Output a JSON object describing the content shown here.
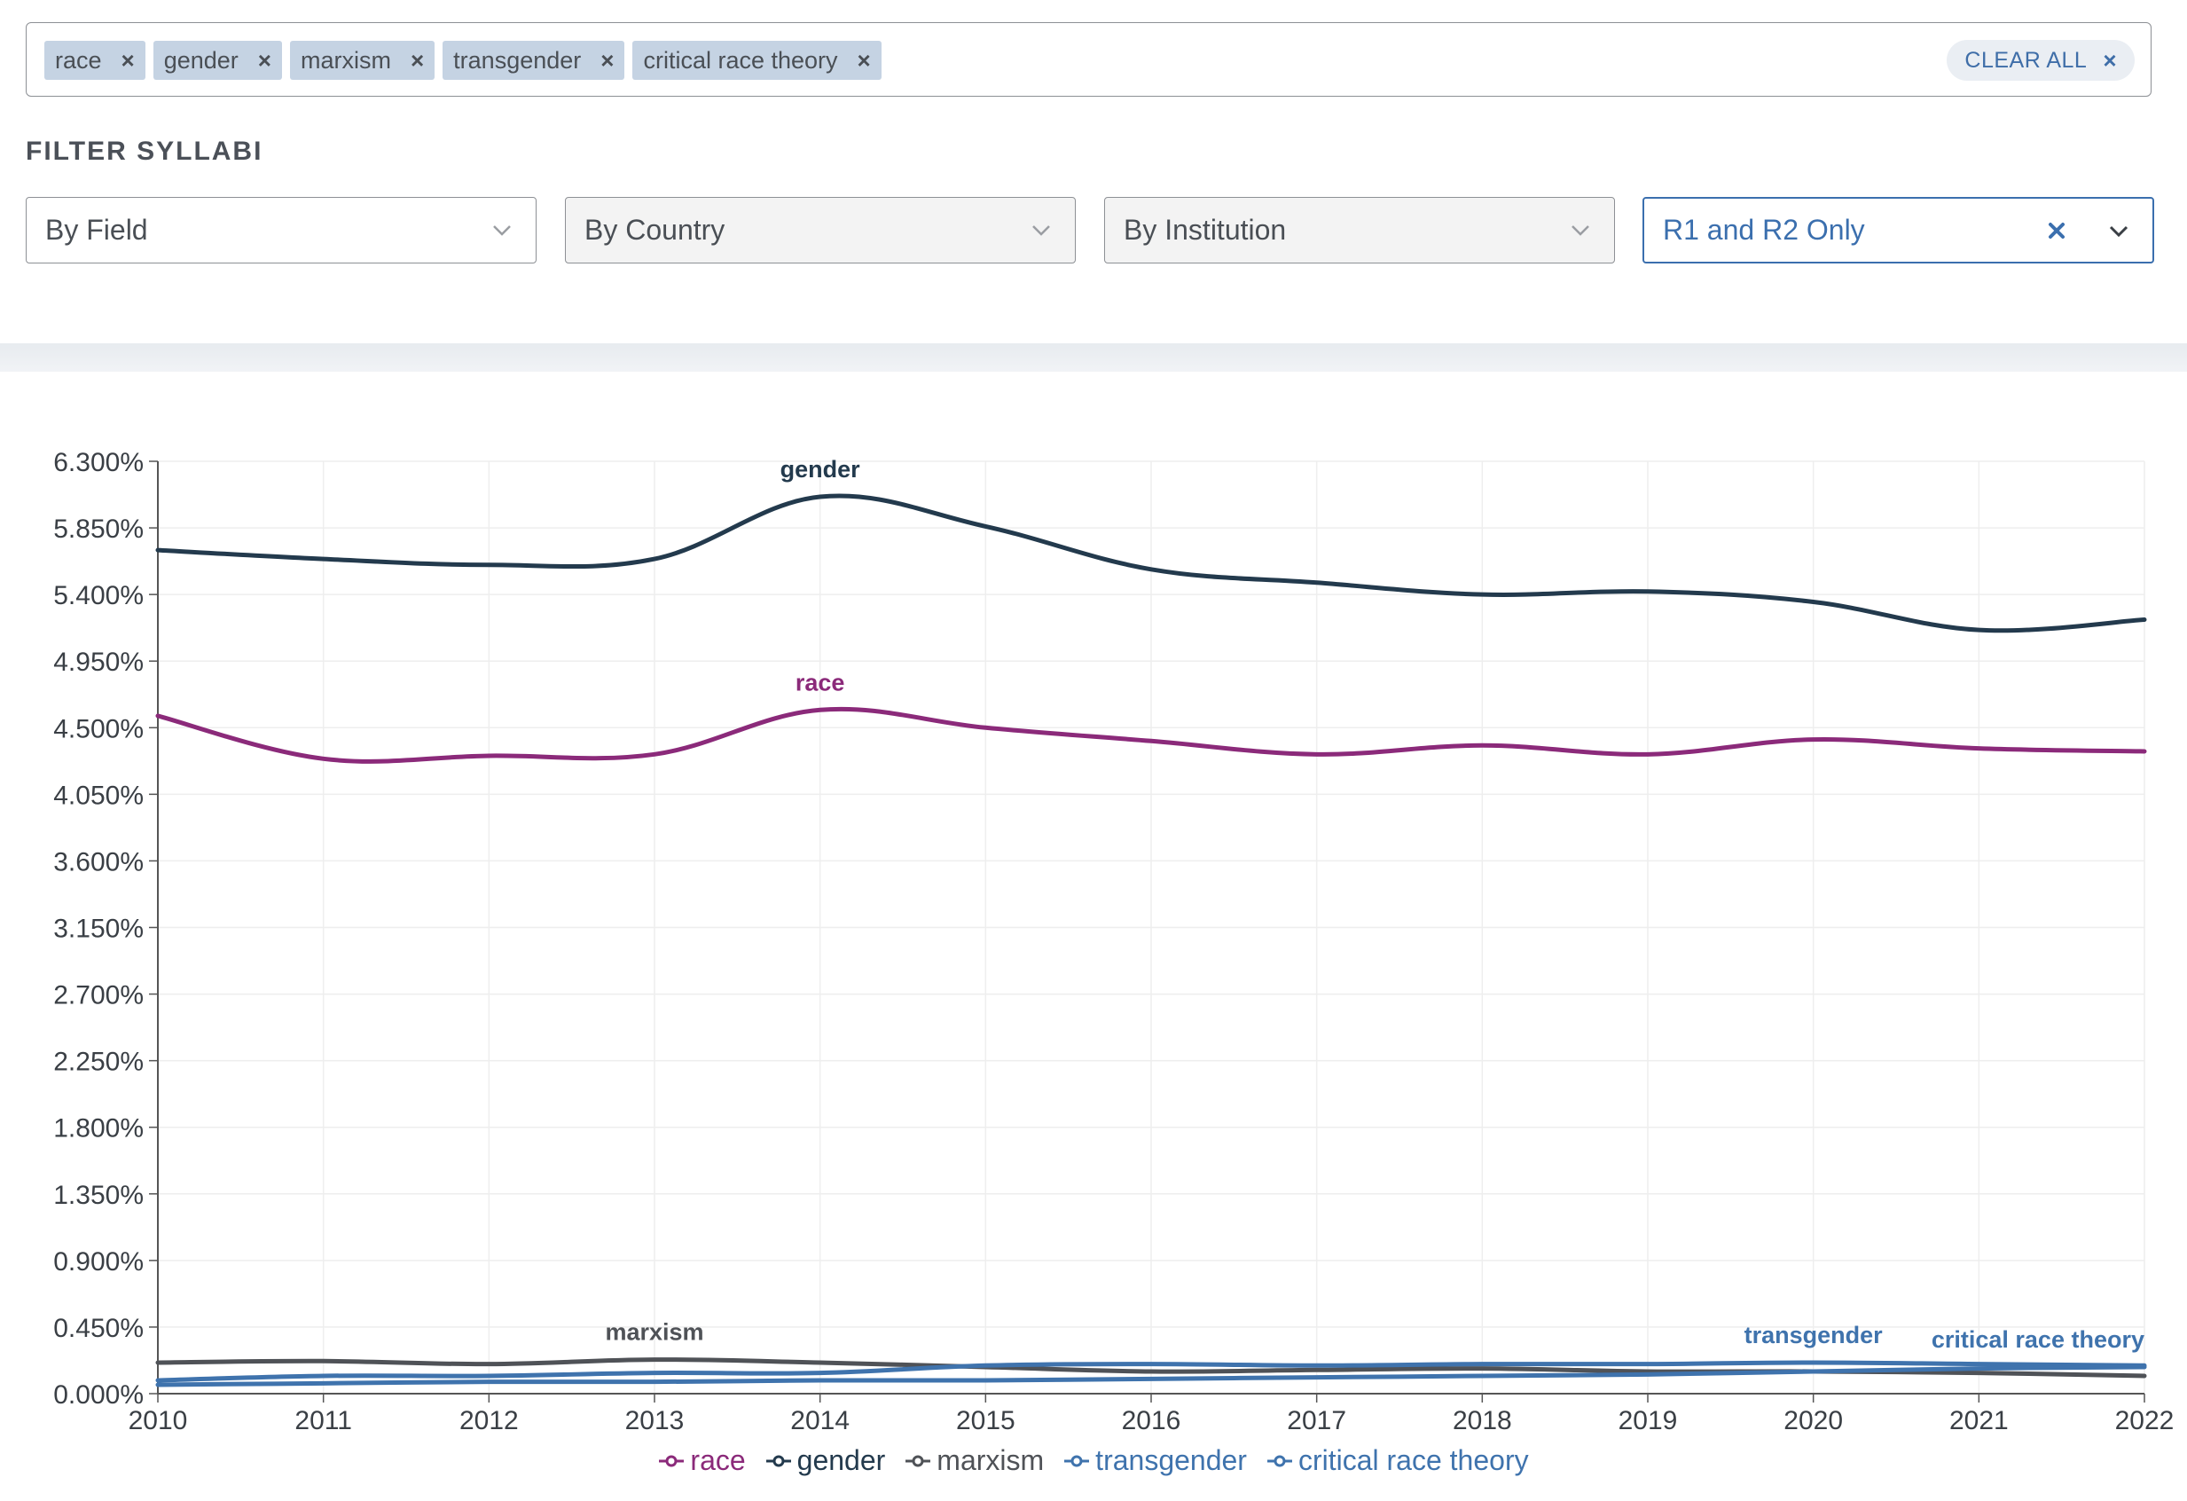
{
  "search": {
    "chips": [
      {
        "label": "race"
      },
      {
        "label": "gender"
      },
      {
        "label": "marxism"
      },
      {
        "label": "transgender"
      },
      {
        "label": "critical race theory"
      }
    ],
    "chip_remove_glyph": "×",
    "clear_all": "CLEAR ALL",
    "clear_all_glyph": "×"
  },
  "filters": {
    "title": "FILTER SYLLABI",
    "field": "By Field",
    "country": "By Country",
    "institution": "By Institution",
    "level": "R1 and R2 Only"
  },
  "colors": {
    "race": "#8b2a7a",
    "gender": "#233a4d",
    "marxism": "#4f5257",
    "transgender": "#3f73ad",
    "critical_race_theory": "#3f73ad",
    "accent": "#3b6fae"
  },
  "chart_data": {
    "type": "line",
    "x": [
      2010,
      2011,
      2012,
      2013,
      2014,
      2015,
      2016,
      2017,
      2018,
      2019,
      2020,
      2021,
      2022
    ],
    "ylim": [
      0,
      6.3
    ],
    "yticks": [
      "0.000%",
      "0.450%",
      "0.900%",
      "1.350%",
      "1.800%",
      "2.250%",
      "2.700%",
      "3.150%",
      "3.600%",
      "4.050%",
      "4.500%",
      "4.950%",
      "5.400%",
      "5.850%",
      "6.300%"
    ],
    "grid": true,
    "legend_position": "bottom",
    "series": [
      {
        "name": "race",
        "color": "#8b2a7a",
        "values": [
          4.58,
          4.29,
          4.31,
          4.32,
          4.62,
          4.5,
          4.41,
          4.32,
          4.38,
          4.32,
          4.42,
          4.36,
          4.34
        ],
        "label_at": 2014
      },
      {
        "name": "gender",
        "color": "#233a4d",
        "values": [
          5.7,
          5.64,
          5.6,
          5.64,
          6.06,
          5.86,
          5.57,
          5.48,
          5.4,
          5.42,
          5.35,
          5.16,
          5.23
        ],
        "label_at": 2014
      },
      {
        "name": "marxism",
        "color": "#4f5257",
        "values": [
          0.21,
          0.22,
          0.2,
          0.23,
          0.21,
          0.18,
          0.15,
          0.16,
          0.17,
          0.15,
          0.15,
          0.14,
          0.12
        ],
        "label_at": 2013
      },
      {
        "name": "transgender",
        "color": "#3f73ad",
        "values": [
          0.09,
          0.12,
          0.12,
          0.14,
          0.14,
          0.19,
          0.2,
          0.19,
          0.2,
          0.2,
          0.21,
          0.2,
          0.19
        ],
        "label_at": 2020
      },
      {
        "name": "critical race theory",
        "color": "#3f73ad",
        "values": [
          0.06,
          0.07,
          0.08,
          0.08,
          0.09,
          0.09,
          0.1,
          0.11,
          0.12,
          0.13,
          0.15,
          0.17,
          0.18
        ],
        "label_at": 2022
      }
    ]
  }
}
